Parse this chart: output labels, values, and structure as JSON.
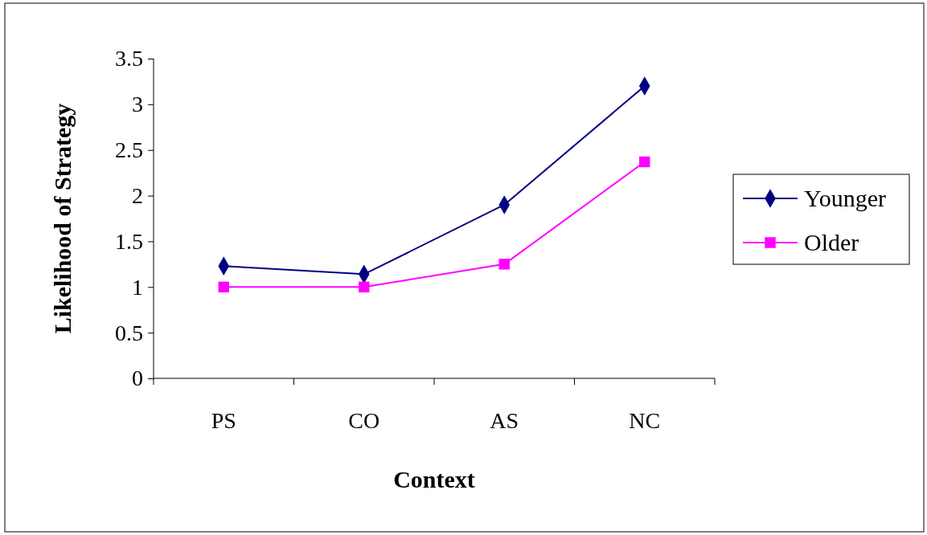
{
  "chart_data": {
    "type": "line",
    "xlabel": "Context",
    "ylabel": "Likelihood of Strategy",
    "categories": [
      "PS",
      "CO",
      "AS",
      "NC"
    ],
    "series": [
      {
        "name": "Younger",
        "color": "#000080",
        "marker": "diamond",
        "values": [
          1.23,
          1.14,
          1.9,
          3.2
        ]
      },
      {
        "name": "Older",
        "color": "#ff00ff",
        "marker": "square",
        "values": [
          1.0,
          1.0,
          1.25,
          2.37
        ]
      }
    ],
    "ylim": [
      0,
      3.5
    ],
    "yticks": [
      0,
      0.5,
      1,
      1.5,
      2,
      2.5,
      3,
      3.5
    ],
    "grid": false,
    "legend": "right"
  }
}
